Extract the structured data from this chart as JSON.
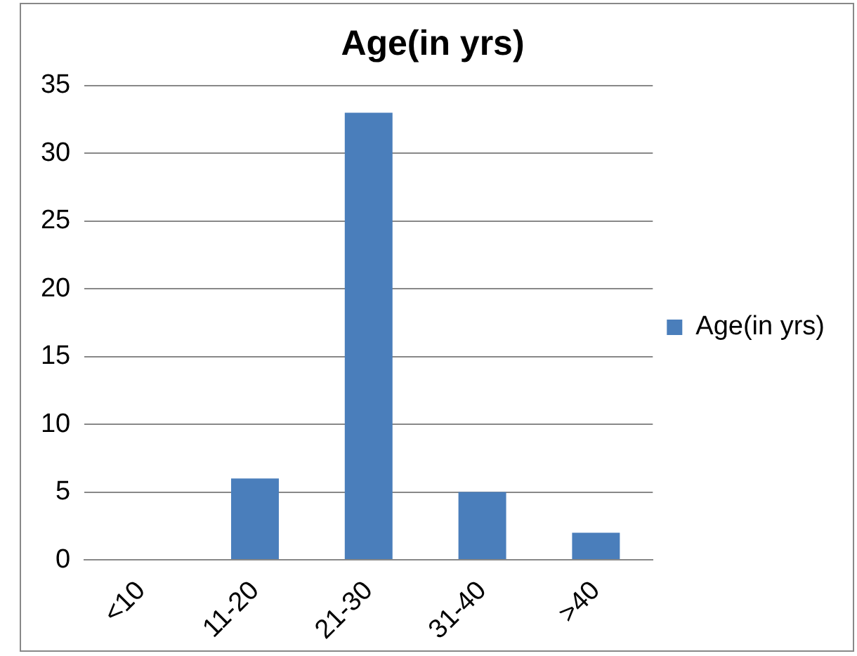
{
  "chart_data": {
    "type": "bar",
    "title": "Age(in yrs)",
    "categories": [
      "<10",
      "11-20",
      "21-30",
      "31-40",
      ">40"
    ],
    "series": [
      {
        "name": "Age(in yrs)",
        "color": "#4a7ebb",
        "values": [
          0,
          6,
          33,
          5,
          2
        ]
      }
    ],
    "ylim": [
      0,
      35
    ],
    "yticks": [
      0,
      5,
      10,
      15,
      20,
      25,
      30,
      35
    ],
    "grid": "y",
    "legend": "right"
  }
}
